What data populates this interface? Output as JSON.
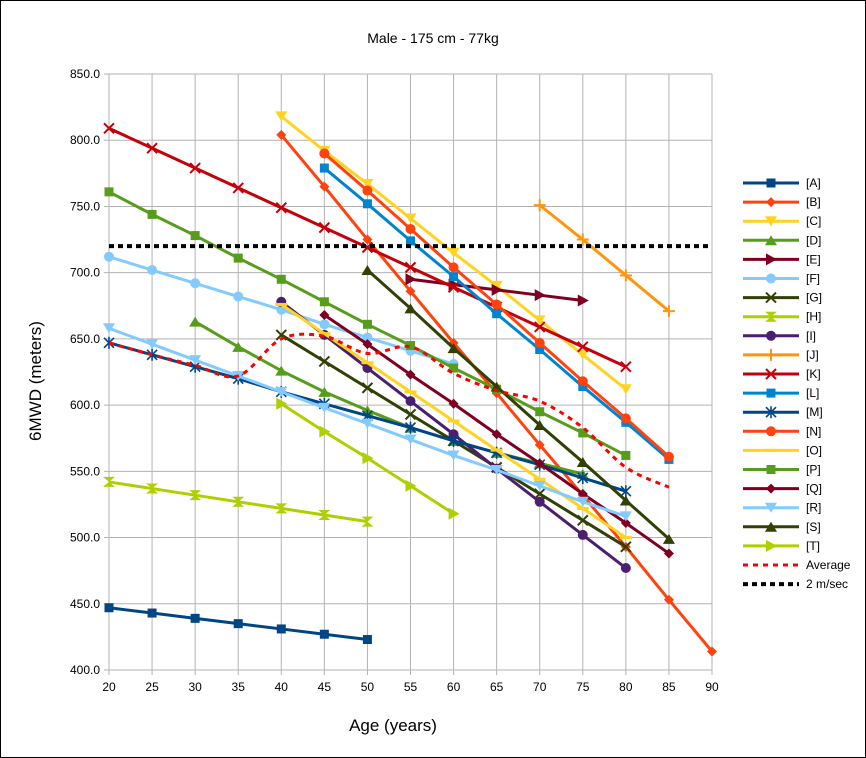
{
  "chart_data": {
    "type": "line",
    "title": "Male - 175 cm - 77kg",
    "xlabel": "Age (years)",
    "ylabel": "6MWD (meters)",
    "xlim": [
      20,
      90
    ],
    "ylim": [
      400,
      850
    ],
    "xticks": [
      "20",
      "25",
      "30",
      "35",
      "40",
      "45",
      "50",
      "55",
      "60",
      "65",
      "70",
      "75",
      "80",
      "85",
      "90"
    ],
    "yticks": [
      "400.0",
      "450.0",
      "500.0",
      "550.0",
      "600.0",
      "650.0",
      "700.0",
      "750.0",
      "800.0",
      "850.0"
    ],
    "grid": true,
    "legend_position": "right",
    "series": [
      {
        "name": "[A]",
        "color": "#004586",
        "marker": "square",
        "x": [
          20,
          25,
          30,
          35,
          40,
          45,
          50
        ],
        "y": [
          447,
          443,
          439,
          435,
          431,
          427,
          423
        ]
      },
      {
        "name": "[B]",
        "color": "#ff420e",
        "marker": "diamond",
        "x": [
          40,
          45,
          50,
          55,
          60,
          65,
          70,
          75,
          80,
          85,
          90
        ],
        "y": [
          804,
          765,
          725,
          686,
          647,
          609,
          570,
          532,
          493,
          453,
          414
        ]
      },
      {
        "name": "[C]",
        "color": "#ffd320",
        "marker": "triangle-down",
        "x": [
          40,
          45,
          50,
          55,
          60,
          65,
          70,
          75,
          80
        ],
        "y": [
          818,
          792,
          767,
          741,
          715,
          690,
          664,
          638,
          612
        ]
      },
      {
        "name": "[D]",
        "color": "#579d1c",
        "marker": "triangle-up",
        "x": [
          30,
          35,
          40,
          45,
          50,
          55,
          60,
          65,
          70,
          75
        ],
        "y": [
          663,
          644,
          626,
          610,
          596,
          583,
          573,
          564,
          556,
          548
        ]
      },
      {
        "name": "[E]",
        "color": "#7e0021",
        "marker": "triangle-right",
        "x": [
          55,
          60,
          65,
          70,
          75
        ],
        "y": [
          695,
          691,
          687,
          683,
          679
        ]
      },
      {
        "name": "[F]",
        "color": "#83caff",
        "marker": "circle",
        "x": [
          20,
          25,
          30,
          35,
          40,
          45,
          50,
          55,
          60
        ],
        "y": [
          712,
          702,
          692,
          682,
          672,
          661,
          651,
          641,
          631
        ]
      },
      {
        "name": "[G]",
        "color": "#314004",
        "marker": "x",
        "x": [
          40,
          45,
          50,
          55,
          60,
          65,
          70,
          75,
          80
        ],
        "y": [
          653,
          633,
          613,
          593,
          573,
          553,
          533,
          513,
          493
        ]
      },
      {
        "name": "[H]",
        "color": "#aecf00",
        "marker": "hourglass",
        "x": [
          20,
          25,
          30,
          35,
          40,
          45,
          50
        ],
        "y": [
          542,
          537,
          532,
          527,
          522,
          517,
          512
        ]
      },
      {
        "name": "[I]",
        "color": "#4b1f6f",
        "marker": "circle",
        "x": [
          40,
          45,
          50,
          55,
          60,
          65,
          70,
          75,
          80
        ],
        "y": [
          678,
          653,
          628,
          603,
          578,
          552,
          527,
          502,
          477
        ]
      },
      {
        "name": "[J]",
        "color": "#ff950e",
        "marker": "plus",
        "x": [
          70,
          75,
          80,
          85
        ],
        "y": [
          751,
          725,
          698,
          671
        ]
      },
      {
        "name": "[K]",
        "color": "#c5000b",
        "marker": "x",
        "x": [
          20,
          25,
          30,
          35,
          40,
          45,
          50,
          55,
          60,
          65,
          70,
          75,
          80
        ],
        "y": [
          809,
          794,
          779,
          764,
          749,
          734,
          719,
          704,
          689,
          674,
          659,
          644,
          629
        ]
      },
      {
        "name": "[L]",
        "color": "#0084d1",
        "marker": "square",
        "x": [
          45,
          50,
          55,
          60,
          65,
          70,
          75,
          80,
          85
        ],
        "y": [
          779,
          752,
          724,
          697,
          669,
          642,
          614,
          587,
          559
        ]
      },
      {
        "name": "[M]",
        "color": "#004586",
        "marker": "star",
        "x": [
          20,
          25,
          30,
          35,
          40,
          45,
          50,
          55,
          60,
          65,
          70,
          75,
          80
        ],
        "y": [
          647,
          638,
          629,
          620,
          610,
          601,
          592,
          583,
          573,
          564,
          555,
          545,
          535
        ]
      },
      {
        "name": "[N]",
        "color": "#ff420e",
        "marker": "circle",
        "x": [
          45,
          50,
          55,
          60,
          65,
          70,
          75,
          80,
          85
        ],
        "y": [
          790,
          762,
          733,
          704,
          676,
          647,
          618,
          590,
          561
        ]
      },
      {
        "name": "[O]",
        "color": "#ffd320",
        "marker": "dash",
        "x": [
          40,
          45,
          50,
          55,
          60,
          65,
          70,
          75,
          80
        ],
        "y": [
          676,
          654,
          632,
          610,
          588,
          566,
          544,
          522,
          500
        ]
      },
      {
        "name": "[P]",
        "color": "#579d1c",
        "marker": "square",
        "x": [
          20,
          25,
          30,
          35,
          40,
          45,
          50,
          55,
          60,
          65,
          70,
          75,
          80
        ],
        "y": [
          761,
          744,
          728,
          711,
          695,
          678,
          661,
          645,
          628,
          612,
          595,
          579,
          562
        ]
      },
      {
        "name": "[Q]",
        "color": "#7e0021",
        "marker": "diamond",
        "x": [
          45,
          50,
          55,
          60,
          65,
          70,
          75,
          80,
          85
        ],
        "y": [
          668,
          646,
          623,
          601,
          578,
          556,
          533,
          511,
          488
        ]
      },
      {
        "name": "[R]",
        "color": "#83caff",
        "marker": "triangle-down",
        "x": [
          20,
          25,
          30,
          35,
          40,
          45,
          50,
          55,
          60,
          65,
          70,
          75,
          80
        ],
        "y": [
          658,
          646,
          634,
          622,
          610,
          598,
          586,
          574,
          562,
          551,
          539,
          527,
          516
        ]
      },
      {
        "name": "[S]",
        "color": "#314004",
        "marker": "triangle-up",
        "x": [
          50,
          55,
          60,
          65,
          70,
          75,
          80,
          85
        ],
        "y": [
          702,
          673,
          643,
          614,
          585,
          557,
          528,
          499
        ]
      },
      {
        "name": "[T]",
        "color": "#aecf00",
        "marker": "triangle-right",
        "x": [
          40,
          45,
          50,
          55,
          60
        ],
        "y": [
          601,
          580,
          560,
          539,
          518
        ]
      },
      {
        "name": "Average",
        "color": "#ff0000",
        "marker": "none",
        "dash": "dotted",
        "x": [
          20,
          25,
          30,
          35,
          40,
          45,
          50,
          55,
          60,
          65,
          70,
          75,
          80,
          85
        ],
        "y": [
          647,
          638,
          630,
          622,
          650,
          652,
          639,
          644,
          624,
          611,
          603,
          583,
          553,
          538
        ]
      },
      {
        "name": "2 m/sec",
        "color": "#000000",
        "marker": "none",
        "dash": "dashed",
        "x": [
          20,
          90
        ],
        "y": [
          720,
          720
        ]
      }
    ]
  }
}
